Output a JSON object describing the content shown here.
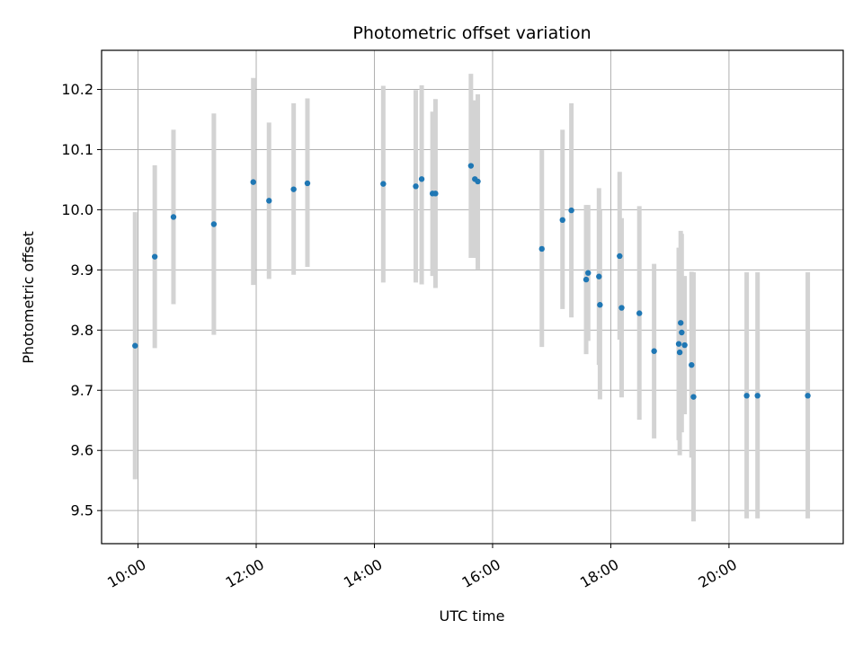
{
  "chart_data": {
    "type": "scatter",
    "title": "Photometric offset variation",
    "xlabel": "UTC time",
    "ylabel": "Photometric offset",
    "x_tick_labels": [
      "10:00",
      "12:00",
      "14:00",
      "16:00",
      "18:00",
      "20:00"
    ],
    "x_tick_values": [
      "10:00",
      "12:00",
      "14:00",
      "16:00",
      "18:00",
      "20:00"
    ],
    "y_tick_labels": [
      "9.5",
      "9.6",
      "9.7",
      "9.8",
      "9.9",
      "10.0",
      "10.1",
      "10.2"
    ],
    "y_tick_values": [
      9.5,
      9.6,
      9.7,
      9.8,
      9.9,
      10.0,
      10.1,
      10.2
    ],
    "xlim": [
      "09:23",
      "21:56"
    ],
    "ylim": [
      9.445,
      10.265
    ],
    "grid": true,
    "point_color": "#1f77b4",
    "errorbar_color": "#d3d3d3",
    "points": [
      {
        "t": "09:57",
        "y": 9.774,
        "lo": 9.552,
        "hi": 9.996
      },
      {
        "t": "10:17",
        "y": 9.922,
        "lo": 9.77,
        "hi": 10.074
      },
      {
        "t": "10:36",
        "y": 9.988,
        "lo": 9.843,
        "hi": 10.133
      },
      {
        "t": "11:17",
        "y": 9.976,
        "lo": 9.792,
        "hi": 10.16
      },
      {
        "t": "11:57",
        "y": 10.046,
        "lo": 9.875,
        "hi": 10.219
      },
      {
        "t": "12:13",
        "y": 10.015,
        "lo": 9.885,
        "hi": 10.145
      },
      {
        "t": "12:38",
        "y": 10.034,
        "lo": 9.892,
        "hi": 10.177
      },
      {
        "t": "12:52",
        "y": 10.044,
        "lo": 9.905,
        "hi": 10.185
      },
      {
        "t": "14:09",
        "y": 10.043,
        "lo": 9.879,
        "hi": 10.206
      },
      {
        "t": "14:42",
        "y": 10.039,
        "lo": 9.879,
        "hi": 10.199
      },
      {
        "t": "14:48",
        "y": 10.051,
        "lo": 9.876,
        "hi": 10.207
      },
      {
        "t": "14:59",
        "y": 10.027,
        "lo": 9.89,
        "hi": 10.163
      },
      {
        "t": "15:02",
        "y": 10.027,
        "lo": 9.87,
        "hi": 10.184
      },
      {
        "t": "15:38",
        "y": 10.073,
        "lo": 9.92,
        "hi": 10.226
      },
      {
        "t": "15:42",
        "y": 10.051,
        "lo": 9.92,
        "hi": 10.182
      },
      {
        "t": "15:45",
        "y": 10.047,
        "lo": 9.901,
        "hi": 10.192
      },
      {
        "t": "16:50",
        "y": 9.935,
        "lo": 9.772,
        "hi": 10.099
      },
      {
        "t": "17:11",
        "y": 9.983,
        "lo": 9.835,
        "hi": 10.133
      },
      {
        "t": "17:20",
        "y": 9.999,
        "lo": 9.821,
        "hi": 10.177
      },
      {
        "t": "17:35",
        "y": 9.884,
        "lo": 9.76,
        "hi": 10.008
      },
      {
        "t": "17:37",
        "y": 9.895,
        "lo": 9.782,
        "hi": 10.008
      },
      {
        "t": "17:48",
        "y": 9.889,
        "lo": 9.742,
        "hi": 10.036
      },
      {
        "t": "17:49",
        "y": 9.842,
        "lo": 9.685,
        "hi": 9.999
      },
      {
        "t": "18:09",
        "y": 9.923,
        "lo": 9.784,
        "hi": 10.063
      },
      {
        "t": "18:11",
        "y": 9.837,
        "lo": 9.688,
        "hi": 9.986
      },
      {
        "t": "18:29",
        "y": 9.828,
        "lo": 9.651,
        "hi": 10.006
      },
      {
        "t": "18:44",
        "y": 9.765,
        "lo": 9.62,
        "hi": 9.91
      },
      {
        "t": "19:09",
        "y": 9.777,
        "lo": 9.617,
        "hi": 9.937
      },
      {
        "t": "19:10",
        "y": 9.763,
        "lo": 9.592,
        "hi": 9.934
      },
      {
        "t": "19:11",
        "y": 9.812,
        "lo": 9.66,
        "hi": 9.965
      },
      {
        "t": "19:12",
        "y": 9.796,
        "lo": 9.63,
        "hi": 9.96
      },
      {
        "t": "19:15",
        "y": 9.775,
        "lo": 9.66,
        "hi": 9.89
      },
      {
        "t": "19:22",
        "y": 9.742,
        "lo": 9.588,
        "hi": 9.897
      },
      {
        "t": "19:24",
        "y": 9.689,
        "lo": 9.482,
        "hi": 9.896
      },
      {
        "t": "20:18",
        "y": 9.691,
        "lo": 9.487,
        "hi": 9.896
      },
      {
        "t": "20:29",
        "y": 9.691,
        "lo": 9.487,
        "hi": 9.896
      },
      {
        "t": "21:20",
        "y": 9.691,
        "lo": 9.487,
        "hi": 9.896
      }
    ]
  }
}
